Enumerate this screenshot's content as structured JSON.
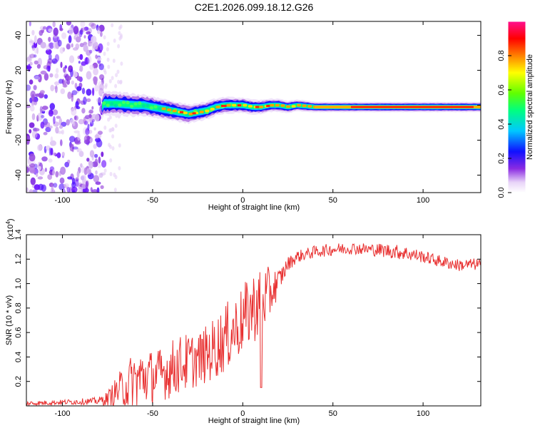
{
  "title": "C2E1.2026.099.18.12.G26",
  "chart_data": [
    {
      "type": "heatmap",
      "name": "spectrogram",
      "xlabel": "Height of straight line (km)",
      "ylabel": "Frequency (Hz)",
      "xlim": [
        -120,
        132
      ],
      "ylim": [
        -50,
        48
      ],
      "xticks": [
        -100,
        -50,
        0,
        50,
        100
      ],
      "yticks": [
        -40,
        -20,
        0,
        20,
        40
      ],
      "ridge": {
        "x": [
          -77,
          -70,
          -60,
          -55,
          -50,
          -45,
          -40,
          -35,
          -30,
          -25,
          -20,
          -15,
          -10,
          -5,
          0,
          5,
          10,
          15,
          20,
          25,
          30,
          40,
          60,
          80,
          100,
          120,
          132
        ],
        "freq": [
          1,
          1,
          0,
          0,
          -1,
          -2,
          -3,
          -4,
          -5,
          -4,
          -3,
          -1,
          0,
          0,
          0,
          -1,
          -1,
          0,
          0,
          -1,
          0,
          -1,
          -1,
          -1,
          -1,
          -1,
          -1
        ]
      },
      "noise_region_x": [
        -120,
        -77
      ],
      "colorbar": {
        "label": "Normalized spectral amplitude",
        "range": [
          0.0,
          1.0
        ],
        "ticks": [
          0.0,
          0.2,
          0.4,
          0.6,
          0.8
        ],
        "tick_labels": [
          "0.0",
          "0.2",
          "0.4",
          "0.6",
          "0.8"
        ]
      }
    },
    {
      "type": "line",
      "name": "snr",
      "xlabel": "Height of straight line (km)",
      "ylabel": "SNR (10 * v/v)",
      "multiplier_label": "(x10",
      "multiplier_exp": "4",
      "xlim": [
        -120,
        132
      ],
      "ylim": [
        0,
        1.4
      ],
      "xticks": [
        -100,
        -50,
        0,
        50,
        100
      ],
      "yticks": [
        0.2,
        0.4,
        0.6,
        0.8,
        1.0,
        1.2,
        1.4
      ],
      "ytick_labels": [
        "0.2",
        "0.4",
        "0.6",
        "0.8",
        "1.0",
        "1.2",
        "1.4"
      ],
      "color": "#e83030",
      "series_envelope": {
        "x": [
          -120,
          -100,
          -80,
          -75,
          -70,
          -65,
          -60,
          -55,
          -50,
          -45,
          -40,
          -35,
          -30,
          -25,
          -20,
          -15,
          -10,
          -5,
          0,
          5,
          10,
          15,
          20,
          25,
          30,
          40,
          50,
          60,
          70,
          80,
          90,
          100,
          110,
          120,
          132
        ],
        "base": [
          0.02,
          0.03,
          0.04,
          0.06,
          0.12,
          0.16,
          0.2,
          0.24,
          0.24,
          0.26,
          0.3,
          0.34,
          0.36,
          0.38,
          0.42,
          0.48,
          0.55,
          0.62,
          0.7,
          0.8,
          0.85,
          0.92,
          1.02,
          1.16,
          1.22,
          1.26,
          1.28,
          1.29,
          1.28,
          1.27,
          1.25,
          1.22,
          1.18,
          1.15,
          1.16
        ],
        "amplitude": [
          0.02,
          0.02,
          0.03,
          0.06,
          0.12,
          0.2,
          0.26,
          0.24,
          0.22,
          0.22,
          0.24,
          0.24,
          0.24,
          0.22,
          0.24,
          0.26,
          0.28,
          0.28,
          0.28,
          0.3,
          0.28,
          0.22,
          0.1,
          0.06,
          0.05,
          0.05,
          0.05,
          0.05,
          0.05,
          0.06,
          0.06,
          0.05,
          0.05,
          0.05,
          0.05
        ]
      }
    }
  ]
}
